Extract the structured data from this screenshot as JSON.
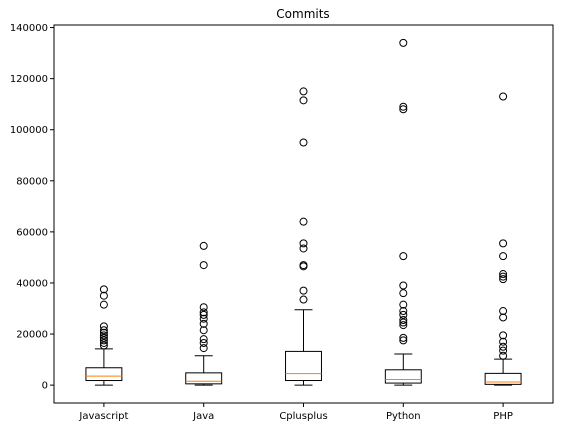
{
  "chart_data": {
    "type": "boxplot",
    "title": "Commits",
    "xlabel": "",
    "ylabel": "",
    "ylim": [
      -7000,
      141000
    ],
    "yticks": [
      0,
      20000,
      40000,
      60000,
      80000,
      100000,
      120000,
      140000
    ],
    "ytick_labels": [
      "0",
      "20000",
      "40000",
      "60000",
      "80000",
      "100000",
      "120000",
      "140000"
    ],
    "grid": false,
    "median_color": "#ff7f0e",
    "box_color": "#000000",
    "categories": [
      "Javascript",
      "Java",
      "Cplusplus",
      "Python",
      "PHP"
    ],
    "boxes": [
      {
        "label": "Javascript",
        "whislo": 0,
        "q1": 1800,
        "med": 3500,
        "q3": 6800,
        "whishi": 14200,
        "fliers": [
          15500,
          16500,
          17500,
          18500,
          19500,
          20500,
          21500,
          23000,
          31500,
          35000,
          37500
        ]
      },
      {
        "label": "Java",
        "whislo": 0,
        "q1": 500,
        "med": 1500,
        "q3": 4800,
        "whishi": 11500,
        "fliers": [
          14500,
          16500,
          18000,
          21500,
          24000,
          26000,
          27500,
          28500,
          30500,
          47000,
          54500
        ]
      },
      {
        "label": "Cplusplus",
        "whislo": 0,
        "q1": 1800,
        "med": 4500,
        "q3": 13200,
        "whishi": 29500,
        "fliers": [
          33500,
          37000,
          46500,
          47000,
          53500,
          55500,
          64000,
          95000,
          111500,
          115000
        ]
      },
      {
        "label": "Python",
        "whislo": 0,
        "q1": 800,
        "med": 2200,
        "q3": 6000,
        "whishi": 12200,
        "fliers": [
          17500,
          18500,
          23500,
          24500,
          25500,
          27500,
          29000,
          31500,
          36000,
          39000,
          50500,
          108000,
          109000,
          134000
        ]
      },
      {
        "label": "PHP",
        "whislo": 0,
        "q1": 300,
        "med": 1200,
        "q3": 4600,
        "whishi": 10200,
        "fliers": [
          11500,
          13500,
          15000,
          17000,
          19500,
          26500,
          29000,
          41500,
          42500,
          43500,
          50500,
          55500,
          113000
        ]
      }
    ]
  }
}
